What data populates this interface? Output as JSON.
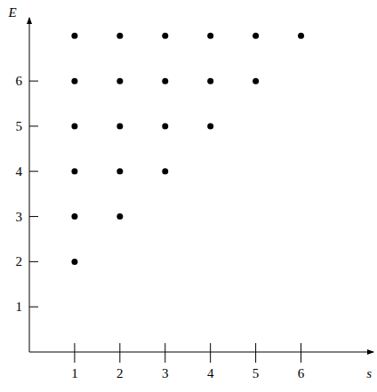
{
  "chart_data": {
    "type": "scatter",
    "x_label": "s",
    "y_label": "E",
    "x": [
      1,
      1,
      1,
      1,
      1,
      1,
      2,
      2,
      2,
      2,
      2,
      3,
      3,
      3,
      3,
      4,
      4,
      4,
      5,
      5,
      6
    ],
    "values": [
      2,
      3,
      4,
      5,
      6,
      7,
      3,
      4,
      5,
      6,
      7,
      4,
      5,
      6,
      7,
      5,
      6,
      7,
      6,
      7,
      7
    ],
    "xlim": [
      0,
      7.6
    ],
    "ylim": [
      0,
      7.4
    ],
    "xticks": [
      1,
      2,
      3,
      4,
      5,
      6
    ],
    "yticks": [
      1,
      2,
      3,
      4,
      5,
      6
    ],
    "color": "#000000",
    "marker": "circle"
  }
}
